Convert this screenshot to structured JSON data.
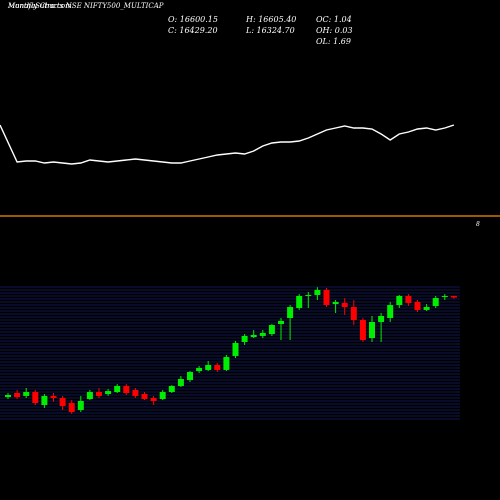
{
  "chart_data": {
    "type": "candlestick",
    "title": "Monthly Charts NSE NIFTY500_MULTICAP",
    "watermark": "MunafaSutra.com",
    "info": [
      "O: 16600.15",
      "H: 16605.40",
      "OC: 1.04",
      "C: 16429.20",
      "L: 16324.70",
      "OH: 0.03",
      "OL: 1.69"
    ],
    "marker_label": "8",
    "up_color": "#00ee00",
    "down_color": "#ff0000",
    "grid": true,
    "ylim": [
      4000,
      17500
    ],
    "open": [
      6330,
      6740,
      6440,
      6840,
      5520,
      6440,
      6230,
      5730,
      5020,
      6130,
      6840,
      6640,
      6840,
      7450,
      7050,
      6640,
      6230,
      6130,
      6840,
      7450,
      8060,
      8970,
      9080,
      9580,
      9080,
      10500,
      11920,
      12420,
      12530,
      12730,
      13740,
      14350,
      15370,
      16590,
      16690,
      17200,
      15770,
      15880,
      15470,
      14150,
      12320,
      13950,
      14350,
      15670,
      16590,
      15980,
      15170,
      15570,
      16480,
      16600.15
    ],
    "high": [
      6740,
      7050,
      7250,
      7050,
      6640,
      6740,
      6440,
      6030,
      6440,
      7050,
      7250,
      7150,
      7650,
      7650,
      7250,
      6840,
      6440,
      7050,
      7550,
      8470,
      8970,
      9480,
      9990,
      9790,
      10600,
      12020,
      12730,
      13140,
      13140,
      13740,
      14350,
      15670,
      16790,
      16990,
      17480,
      17400,
      16180,
      16380,
      16180,
      14350,
      14560,
      14860,
      15980,
      16690,
      16790,
      16180,
      15770,
      16590,
      16790,
      16605.4
    ],
    "low": [
      6130,
      6130,
      6230,
      5520,
      5220,
      5830,
      5020,
      4610,
      4810,
      6030,
      6230,
      6440,
      6740,
      6540,
      6230,
      6030,
      5520,
      6030,
      6740,
      7350,
      7860,
      8770,
      8970,
      8870,
      8970,
      10290,
      11610,
      12320,
      12320,
      12530,
      12120,
      12120,
      15170,
      15370,
      16180,
      15470,
      14860,
      14660,
      13640,
      11920,
      11920,
      11920,
      13950,
      15370,
      15570,
      14960,
      15060,
      15370,
      16180,
      16324.7
    ],
    "close": [
      6540,
      6330,
      6840,
      5730,
      6440,
      6230,
      5420,
      4810,
      5930,
      6840,
      6440,
      6940,
      7450,
      6740,
      6440,
      6130,
      5930,
      6840,
      7450,
      8160,
      8870,
      9280,
      9580,
      9080,
      10390,
      11820,
      12530,
      12630,
      12830,
      13640,
      14050,
      15470,
      16590,
      16690,
      17200,
      15670,
      15980,
      15470,
      14150,
      12120,
      13950,
      14560,
      15670,
      16590,
      15880,
      15170,
      15470,
      16380,
      16590,
      16429.2
    ],
    "indicator": {
      "color": "#ffffff",
      "ylim": [
        0,
        100
      ],
      "values": [
        75,
        38,
        39,
        39,
        37,
        38,
        37,
        36,
        37,
        40,
        39,
        38,
        39,
        40,
        41,
        40,
        39,
        38,
        37,
        37,
        39,
        41,
        43,
        45,
        46,
        47,
        46,
        49,
        54,
        57,
        58,
        58,
        59,
        62,
        66,
        70,
        72,
        74,
        72,
        72,
        71,
        66,
        60,
        66,
        68,
        71,
        72,
        70,
        72,
        75
      ]
    }
  }
}
